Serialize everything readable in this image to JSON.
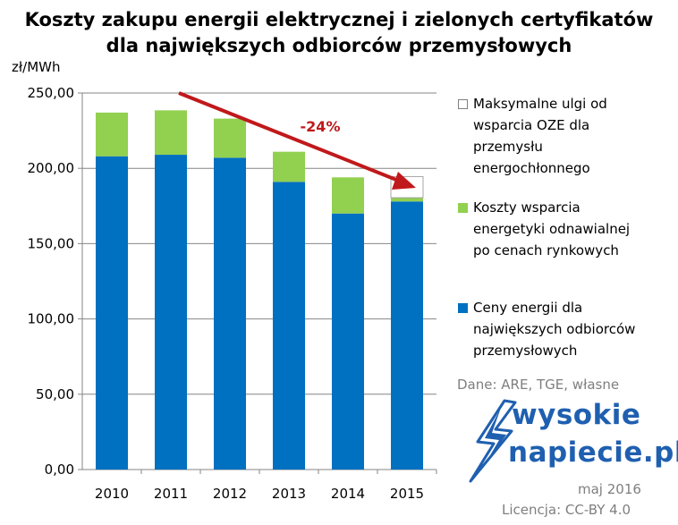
{
  "chart_data": {
    "type": "bar",
    "stacked": true,
    "title": "Koszty zakupu energii elektrycznej i zielonych certyfikatów dla największych odbiorców przemysłowych",
    "ylabel": "zł/MWh",
    "xlabel": "",
    "categories": [
      "2010",
      "2011",
      "2012",
      "2013",
      "2014",
      "2015"
    ],
    "ylim": [
      0,
      250
    ],
    "yticks": [
      0,
      50,
      100,
      150,
      200,
      250
    ],
    "ytick_labels": [
      "0,00",
      "50,00",
      "100,00",
      "150,00",
      "200,00",
      "250,00"
    ],
    "grid": true,
    "legend_position": "right",
    "series": [
      {
        "name": "Ceny energii dla największych odbiorców przemysłowych",
        "color": "#0070c0",
        "values": [
          208,
          209,
          207,
          191,
          170,
          178
        ]
      },
      {
        "name": "Koszty wsparcia energetyki odnawialnej po cenach rynkowych",
        "color": "#92d050",
        "values": [
          29,
          29.5,
          26,
          20,
          24,
          2.5
        ]
      },
      {
        "name": "Maksymalne ulgi od wsparcia OZE dla przemysłu energochłonnego",
        "color": "#ffffff",
        "values": [
          0,
          0,
          0,
          0,
          0,
          14
        ]
      }
    ],
    "annotations": [
      {
        "text": "-24%",
        "color": "#c0191b",
        "type": "trend-arrow",
        "from_category": "2010",
        "to_category": "2015"
      }
    ]
  },
  "title_line1": "Koszty zakupu energii elektrycznej i zielonych certyfikatów",
  "title_line2": "dla największych odbiorców przemysłowych",
  "unit_label": "zł/MWh",
  "legend": [
    {
      "label": "Maksymalne ulgi od\nwsparcia OZE dla\nprzemysłu\nenergochłonnego",
      "color": "#ffffff",
      "border": "#7f7f7f"
    },
    {
      "label": "Koszty wsparcia\nenergetyki odnawialnej\npo cenach rynkowych",
      "color": "#92d050",
      "border": "#92d050"
    },
    {
      "label": "Ceny energii dla\nnajwiększych odbiorców\nprzemysłowych",
      "color": "#0070c0",
      "border": "#0070c0"
    }
  ],
  "source_text": "Dane: ARE, TGE, własne",
  "logo": {
    "line1": "wysokie",
    "line2": "napiecie.pl",
    "color": "#1f5fb0"
  },
  "date_text": "maj 2016",
  "license_text": "Licencja: CC-BY 4.0"
}
